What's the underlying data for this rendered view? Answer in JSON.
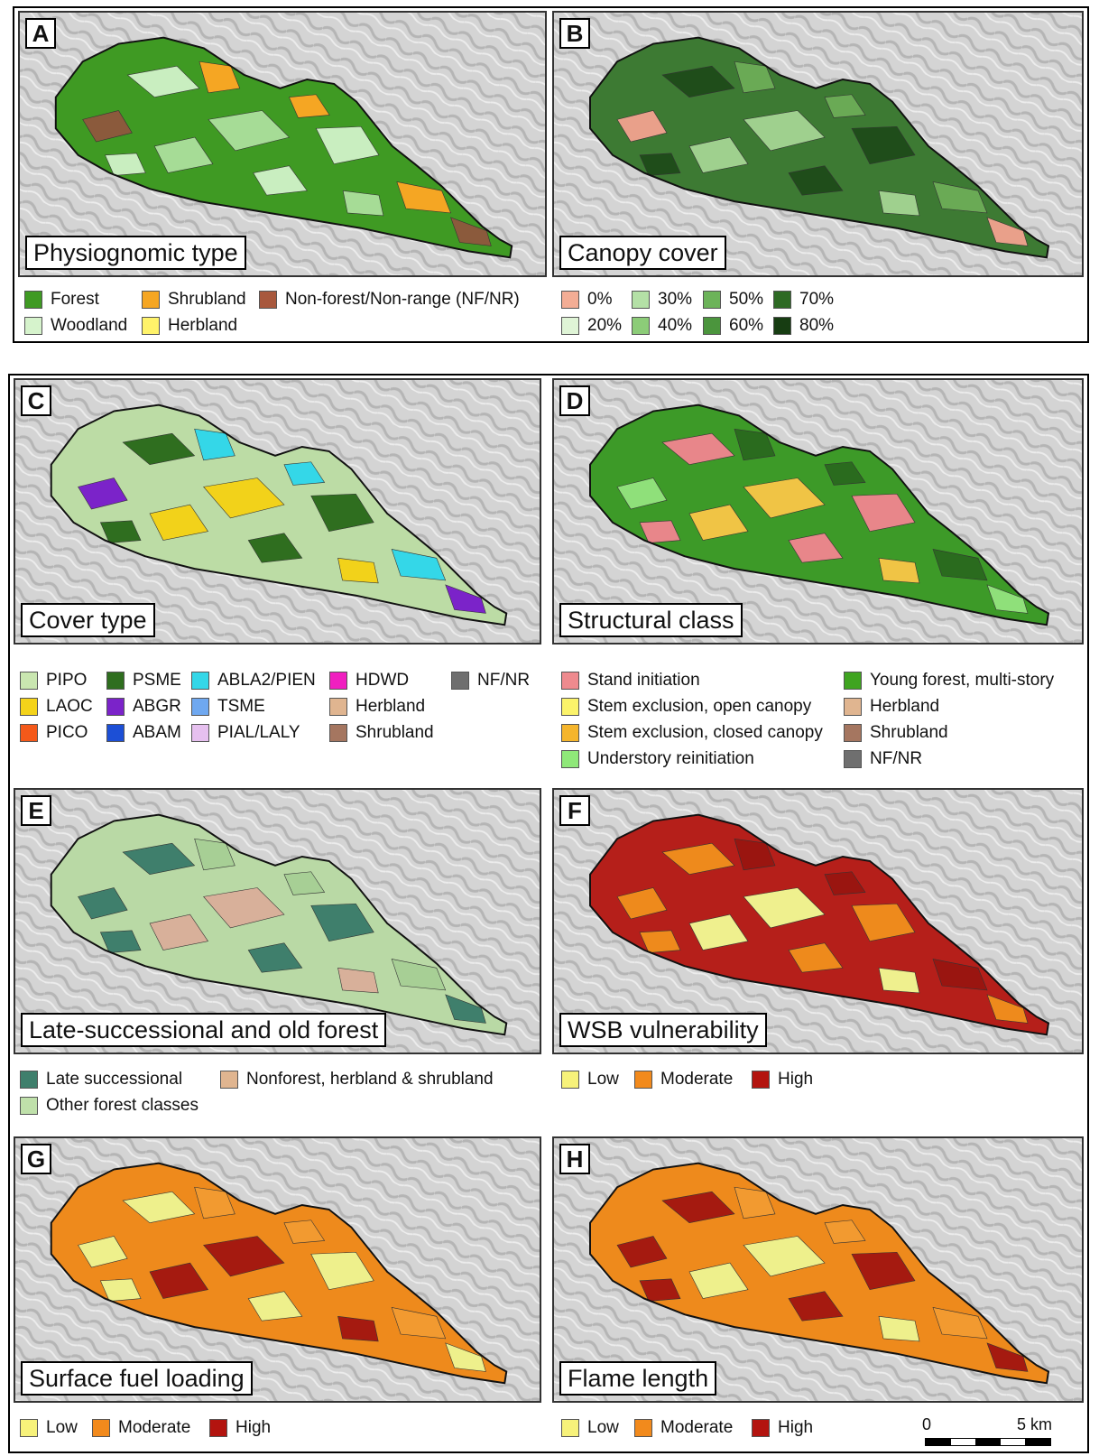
{
  "panels": {
    "A": {
      "letter": "A",
      "title": "Physiognomic type",
      "colors": {
        "base": "#3f9a23",
        "patchA": "#c9eec0",
        "patchB": "#a6dc96",
        "patchC": "#8b5a3c",
        "patchD": "#f5a623"
      }
    },
    "B": {
      "letter": "B",
      "title": "Canopy cover",
      "colors": {
        "base": "#3d7a33",
        "patchA": "#1f4d1a",
        "patchB": "#9fd08e",
        "patchC": "#e9a08a",
        "patchD": "#6aaa55"
      }
    },
    "C": {
      "letter": "C",
      "title": "Cover type",
      "colors": {
        "base": "#bcdca5",
        "patchA": "#2f6e1f",
        "patchB": "#f2d21a",
        "patchC": "#7b23c9",
        "patchD": "#34d7e8"
      }
    },
    "D": {
      "letter": "D",
      "title": "Structural class",
      "colors": {
        "base": "#3d9a28",
        "patchA": "#e8868a",
        "patchB": "#f0c445",
        "patchC": "#8fe07a",
        "patchD": "#2a6b1e"
      }
    },
    "E": {
      "letter": "E",
      "title": "Late-successional and old forest",
      "colors": {
        "base": "#b9d9a5",
        "patchA": "#3f7f6c",
        "patchB": "#d8b09a",
        "patchC": "#3f7f6c",
        "patchD": "#a7cf95"
      }
    },
    "F": {
      "letter": "F",
      "title": "WSB vulnerability",
      "colors": {
        "base": "#b51f1a",
        "patchA": "#ee8a1c",
        "patchB": "#eff08e",
        "patchC": "#ee8a1c",
        "patchD": "#9a1510"
      }
    },
    "G": {
      "letter": "G",
      "title": "Surface fuel loading",
      "colors": {
        "base": "#ee8a1c",
        "patchA": "#eef08c",
        "patchB": "#a51a10",
        "patchC": "#eef08c",
        "patchD": "#f29a30"
      }
    },
    "H": {
      "letter": "H",
      "title": "Flame length",
      "colors": {
        "base": "#ee8a1c",
        "patchA": "#a51a10",
        "patchB": "#eef08c",
        "patchC": "#a51a10",
        "patchD": "#f29a30"
      }
    }
  },
  "legends": {
    "A": [
      {
        "label": "Forest",
        "color": "#3f9a23"
      },
      {
        "label": "Woodland",
        "color": "#d6f3cc"
      },
      {
        "label": "Shrubland",
        "color": "#f5a623"
      },
      {
        "label": "Herbland",
        "color": "#fff36a"
      },
      {
        "label": "Non-forest/Non-range (NF/NR)",
        "color": "#a8583d"
      }
    ],
    "B": [
      {
        "label": "0%",
        "color": "#f3ad95"
      },
      {
        "label": "20%",
        "color": "#dff4d6"
      },
      {
        "label": "30%",
        "color": "#b4e0a6"
      },
      {
        "label": "40%",
        "color": "#8ccc78"
      },
      {
        "label": "50%",
        "color": "#6cb359"
      },
      {
        "label": "60%",
        "color": "#4b953d"
      },
      {
        "label": "70%",
        "color": "#2e6a24"
      },
      {
        "label": "80%",
        "color": "#173d12"
      }
    ],
    "C": [
      {
        "label": "PIPO",
        "color": "#c9e6b0"
      },
      {
        "label": "LAOC",
        "color": "#f4d31a"
      },
      {
        "label": "PICO",
        "color": "#f4591a"
      },
      {
        "label": "PSME",
        "color": "#2f6e1f"
      },
      {
        "label": "ABGR",
        "color": "#7b23c9"
      },
      {
        "label": "ABAM",
        "color": "#1c4fd6"
      },
      {
        "label": "ABLA2/PIEN",
        "color": "#34d7e8"
      },
      {
        "label": "TSME",
        "color": "#6fa8f0"
      },
      {
        "label": "PIAL/LALY",
        "color": "#e6c0ef"
      },
      {
        "label": "HDWD",
        "color": "#f01fc0"
      },
      {
        "label": "Herbland",
        "color": "#e0b590"
      },
      {
        "label": "Shrubland",
        "color": "#a57660"
      },
      {
        "label": "NF/NR",
        "color": "#6f6f6f"
      }
    ],
    "D": [
      {
        "label": "Stand initiation",
        "color": "#ee8a8e"
      },
      {
        "label": "Stem exclusion, open canopy",
        "color": "#fbf36a"
      },
      {
        "label": "Stem exclusion, closed canopy",
        "color": "#f5b52c"
      },
      {
        "label": "Understory reinitiation",
        "color": "#8fe879"
      },
      {
        "label": "Young forest, multi-story",
        "color": "#3fa420"
      },
      {
        "label": "Herbland",
        "color": "#e0b590"
      },
      {
        "label": "Shrubland",
        "color": "#a57660"
      },
      {
        "label": "NF/NR",
        "color": "#6f6f6f"
      }
    ],
    "E": [
      {
        "label": "Late successional",
        "color": "#3f7f6c"
      },
      {
        "label": "Other forest classes",
        "color": "#bfe0aa"
      },
      {
        "label": "Nonforest, herbland & shrubland",
        "color": "#e0b590"
      }
    ],
    "F": [
      {
        "label": "Low",
        "color": "#f7f27a"
      },
      {
        "label": "Moderate",
        "color": "#f28a1c"
      },
      {
        "label": "High",
        "color": "#b3140f"
      }
    ],
    "G": [
      {
        "label": "Low",
        "color": "#f7f27a"
      },
      {
        "label": "Moderate",
        "color": "#f28a1c"
      },
      {
        "label": "High",
        "color": "#b3140f"
      }
    ],
    "H": [
      {
        "label": "Low",
        "color": "#f7f27a"
      },
      {
        "label": "Moderate",
        "color": "#f28a1c"
      },
      {
        "label": "High",
        "color": "#b3140f"
      }
    ]
  },
  "scale_bar": {
    "start_label": "0",
    "end_label": "5 km"
  }
}
